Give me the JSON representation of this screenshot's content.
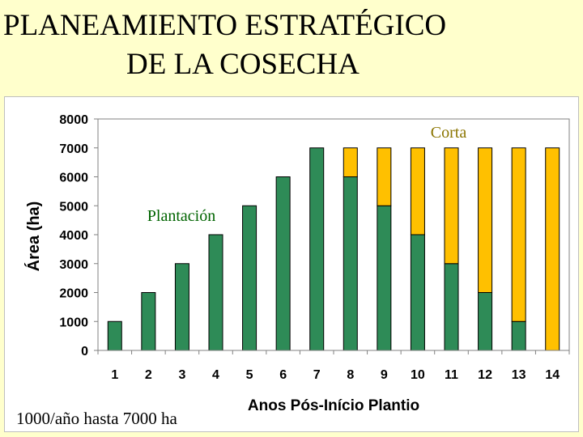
{
  "slide": {
    "title_line_1": "PLANEAMIENTO ESTRATÉGICO",
    "title_line_2": "DE LA COSECHA",
    "footnote": "1000/año hasta 7000 ha"
  },
  "colors": {
    "background": "#ffffcc",
    "plantacion": "#2e8b57",
    "corta": "#ffc000",
    "corta_label": "#8b7500",
    "plantacion_label": "#006400"
  },
  "chart_data": {
    "type": "bar",
    "stacked": true,
    "categories": [
      "1",
      "2",
      "3",
      "4",
      "5",
      "6",
      "7",
      "8",
      "9",
      "10",
      "11",
      "12",
      "13",
      "14"
    ],
    "series": [
      {
        "name": "Plantación",
        "color": "#2e8b57",
        "values": [
          1000,
          2000,
          3000,
          4000,
          5000,
          6000,
          7000,
          6000,
          5000,
          4000,
          3000,
          2000,
          1000,
          0
        ]
      },
      {
        "name": "Corta",
        "color": "#ffc000",
        "values": [
          0,
          0,
          0,
          0,
          0,
          0,
          0,
          1000,
          2000,
          3000,
          4000,
          5000,
          6000,
          7000
        ]
      }
    ],
    "xlabel": "Anos Pós-Início Plantio",
    "ylabel": "Área (ha)",
    "ylim": [
      0,
      8000
    ],
    "yticks": [
      0,
      1000,
      2000,
      3000,
      4000,
      5000,
      6000,
      7000,
      8000
    ],
    "grid": false
  }
}
